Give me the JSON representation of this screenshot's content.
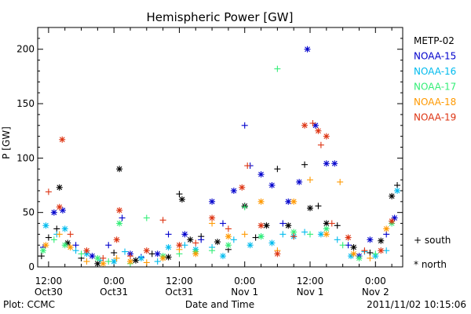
{
  "chart_data": {
    "type": "scatter",
    "title": "Hemispheric Power [GW]",
    "xlabel": "Date and Time",
    "ylabel": "P [GW]",
    "ylim": [
      0,
      220
    ],
    "xlim_hours": [
      -2,
      65
    ],
    "yticks": [
      0,
      50,
      100,
      150,
      200
    ],
    "xtick_labels": [
      {
        "h": 0,
        "top": "12:00",
        "bottom": "Oct30"
      },
      {
        "h": 12,
        "top": "0:00",
        "bottom": "Oct31"
      },
      {
        "h": 24,
        "top": "12:00",
        "bottom": "Oct31"
      },
      {
        "h": 36,
        "top": "0:00",
        "bottom": "Nov 1"
      },
      {
        "h": 48,
        "top": "12:00",
        "bottom": "Nov 1"
      },
      {
        "h": 60,
        "top": "0:00",
        "bottom": "Nov 2"
      }
    ],
    "x_reference": "hours after 2011-10-30 12:00",
    "legend_position": "right",
    "symbol_legend": [
      {
        "symbol": "+",
        "label": "south"
      },
      {
        "symbol": "*",
        "label": "north"
      }
    ],
    "series": [
      {
        "name": "METP-02",
        "color": "#000000",
        "points": [
          {
            "x": -1.3,
            "y": 10,
            "h": "south"
          },
          {
            "x": 0.0,
            "y": 27,
            "h": "south"
          },
          {
            "x": 1.5,
            "y": 35,
            "h": "south"
          },
          {
            "x": 2.0,
            "y": 73,
            "h": "north"
          },
          {
            "x": 3.5,
            "y": 22,
            "h": "north"
          },
          {
            "x": 6.0,
            "y": 8,
            "h": "south"
          },
          {
            "x": 9.0,
            "y": 3,
            "h": "north"
          },
          {
            "x": 12.0,
            "y": 13,
            "h": "south"
          },
          {
            "x": 13.0,
            "y": 90,
            "h": "north"
          },
          {
            "x": 16.0,
            "y": 6,
            "h": "north"
          },
          {
            "x": 19.0,
            "y": 12,
            "h": "south"
          },
          {
            "x": 22.0,
            "y": 9,
            "h": "north"
          },
          {
            "x": 24.0,
            "y": 67,
            "h": "south"
          },
          {
            "x": 24.5,
            "y": 62,
            "h": "north"
          },
          {
            "x": 26.0,
            "y": 25,
            "h": "north"
          },
          {
            "x": 28.0,
            "y": 28,
            "h": "south"
          },
          {
            "x": 31.0,
            "y": 23,
            "h": "north"
          },
          {
            "x": 33.0,
            "y": 16,
            "h": "south"
          },
          {
            "x": 36.0,
            "y": 56,
            "h": "north"
          },
          {
            "x": 38.0,
            "y": 27,
            "h": "south"
          },
          {
            "x": 40.0,
            "y": 38,
            "h": "north"
          },
          {
            "x": 42.0,
            "y": 90,
            "h": "south"
          },
          {
            "x": 44.0,
            "y": 38,
            "h": "north"
          },
          {
            "x": 47.0,
            "y": 94,
            "h": "south"
          },
          {
            "x": 48.0,
            "y": 54,
            "h": "north"
          },
          {
            "x": 49.5,
            "y": 56,
            "h": "south"
          },
          {
            "x": 51.0,
            "y": 40,
            "h": "north"
          },
          {
            "x": 53.0,
            "y": 38,
            "h": "south"
          },
          {
            "x": 56.0,
            "y": 18,
            "h": "north"
          },
          {
            "x": 59.0,
            "y": 13,
            "h": "south"
          },
          {
            "x": 61.0,
            "y": 24,
            "h": "north"
          },
          {
            "x": 63.0,
            "y": 65,
            "h": "north"
          },
          {
            "x": 64.0,
            "y": 75,
            "h": "south"
          }
        ]
      },
      {
        "name": "NOAA-15",
        "color": "#0000cc",
        "points": [
          {
            "x": -1.0,
            "y": 18,
            "h": "south"
          },
          {
            "x": 1.0,
            "y": 50,
            "h": "north"
          },
          {
            "x": 2.6,
            "y": 52,
            "h": "north"
          },
          {
            "x": 5.0,
            "y": 20,
            "h": "south"
          },
          {
            "x": 8.0,
            "y": 10,
            "h": "north"
          },
          {
            "x": 11.0,
            "y": 20,
            "h": "south"
          },
          {
            "x": 13.5,
            "y": 45,
            "h": "south"
          },
          {
            "x": 15.0,
            "y": 12,
            "h": "north"
          },
          {
            "x": 17.0,
            "y": 9,
            "h": "south"
          },
          {
            "x": 20.0,
            "y": 12,
            "h": "north"
          },
          {
            "x": 22.0,
            "y": 30,
            "h": "south"
          },
          {
            "x": 25.0,
            "y": 30,
            "h": "north"
          },
          {
            "x": 28.0,
            "y": 25,
            "h": "south"
          },
          {
            "x": 30.0,
            "y": 60,
            "h": "north"
          },
          {
            "x": 32.0,
            "y": 40,
            "h": "south"
          },
          {
            "x": 34.0,
            "y": 70,
            "h": "north"
          },
          {
            "x": 36.0,
            "y": 130,
            "h": "south"
          },
          {
            "x": 37.0,
            "y": 93,
            "h": "south"
          },
          {
            "x": 39.0,
            "y": 85,
            "h": "north"
          },
          {
            "x": 41.0,
            "y": 75,
            "h": "north"
          },
          {
            "x": 43.0,
            "y": 40,
            "h": "south"
          },
          {
            "x": 44.0,
            "y": 60,
            "h": "north"
          },
          {
            "x": 46.0,
            "y": 78,
            "h": "north"
          },
          {
            "x": 47.5,
            "y": 200,
            "h": "north"
          },
          {
            "x": 49.0,
            "y": 130,
            "h": "north"
          },
          {
            "x": 51.0,
            "y": 95,
            "h": "north"
          },
          {
            "x": 52.5,
            "y": 95,
            "h": "north"
          },
          {
            "x": 55.0,
            "y": 20,
            "h": "south"
          },
          {
            "x": 57.0,
            "y": 10,
            "h": "north"
          },
          {
            "x": 59.0,
            "y": 25,
            "h": "north"
          },
          {
            "x": 62.0,
            "y": 30,
            "h": "south"
          },
          {
            "x": 63.5,
            "y": 45,
            "h": "north"
          }
        ]
      },
      {
        "name": "NOAA-16",
        "color": "#00bbee",
        "points": [
          {
            "x": -0.5,
            "y": 38,
            "h": "north"
          },
          {
            "x": 1.5,
            "y": 30,
            "h": "south"
          },
          {
            "x": 3.0,
            "y": 35,
            "h": "north"
          },
          {
            "x": 5.0,
            "y": 15,
            "h": "south"
          },
          {
            "x": 7.0,
            "y": 12,
            "h": "north"
          },
          {
            "x": 9.5,
            "y": 6,
            "h": "south"
          },
          {
            "x": 12.0,
            "y": 5,
            "h": "north"
          },
          {
            "x": 14.0,
            "y": 14,
            "h": "south"
          },
          {
            "x": 17.0,
            "y": 8,
            "h": "north"
          },
          {
            "x": 20.0,
            "y": 5,
            "h": "south"
          },
          {
            "x": 22.0,
            "y": 18,
            "h": "north"
          },
          {
            "x": 25.0,
            "y": 20,
            "h": "south"
          },
          {
            "x": 27.0,
            "y": 16,
            "h": "north"
          },
          {
            "x": 30.0,
            "y": 18,
            "h": "south"
          },
          {
            "x": 32.0,
            "y": 10,
            "h": "north"
          },
          {
            "x": 34.0,
            "y": 25,
            "h": "south"
          },
          {
            "x": 37.0,
            "y": 20,
            "h": "north"
          },
          {
            "x": 39.0,
            "y": 28,
            "h": "south"
          },
          {
            "x": 41.0,
            "y": 22,
            "h": "north"
          },
          {
            "x": 43.0,
            "y": 30,
            "h": "south"
          },
          {
            "x": 45.0,
            "y": 28,
            "h": "north"
          },
          {
            "x": 47.0,
            "y": 32,
            "h": "south"
          },
          {
            "x": 50.0,
            "y": 30,
            "h": "north"
          },
          {
            "x": 53.0,
            "y": 25,
            "h": "south"
          },
          {
            "x": 55.5,
            "y": 10,
            "h": "north"
          },
          {
            "x": 58.0,
            "y": 14,
            "h": "south"
          },
          {
            "x": 60.0,
            "y": 10,
            "h": "north"
          },
          {
            "x": 62.0,
            "y": 15,
            "h": "south"
          },
          {
            "x": 64.0,
            "y": 70,
            "h": "north"
          }
        ]
      },
      {
        "name": "NOAA-17",
        "color": "#33ee77",
        "points": [
          {
            "x": -1.0,
            "y": 15,
            "h": "north"
          },
          {
            "x": 1.0,
            "y": 25,
            "h": "south"
          },
          {
            "x": 3.0,
            "y": 20,
            "h": "north"
          },
          {
            "x": 6.0,
            "y": 12,
            "h": "south"
          },
          {
            "x": 9.0,
            "y": 8,
            "h": "north"
          },
          {
            "x": 11.0,
            "y": 5,
            "h": "south"
          },
          {
            "x": 13.0,
            "y": 40,
            "h": "north"
          },
          {
            "x": 15.0,
            "y": 3,
            "h": "south"
          },
          {
            "x": 18.0,
            "y": 45,
            "h": "south"
          },
          {
            "x": 21.0,
            "y": 10,
            "h": "north"
          },
          {
            "x": 24.0,
            "y": 12,
            "h": "south"
          },
          {
            "x": 27.0,
            "y": 14,
            "h": "north"
          },
          {
            "x": 30.0,
            "y": 15,
            "h": "south"
          },
          {
            "x": 33.0,
            "y": 20,
            "h": "north"
          },
          {
            "x": 36.0,
            "y": 55,
            "h": "south"
          },
          {
            "x": 39.0,
            "y": 28,
            "h": "north"
          },
          {
            "x": 42.0,
            "y": 182,
            "h": "south"
          },
          {
            "x": 45.0,
            "y": 32,
            "h": "north"
          },
          {
            "x": 48.0,
            "y": 30,
            "h": "south"
          },
          {
            "x": 51.0,
            "y": 35,
            "h": "north"
          },
          {
            "x": 54.0,
            "y": 20,
            "h": "south"
          },
          {
            "x": 57.0,
            "y": 8,
            "h": "north"
          },
          {
            "x": 60.0,
            "y": 12,
            "h": "south"
          },
          {
            "x": 63.0,
            "y": 40,
            "h": "north"
          }
        ]
      },
      {
        "name": "NOAA-18",
        "color": "#ff9900",
        "points": [
          {
            "x": -0.5,
            "y": 20,
            "h": "north"
          },
          {
            "x": 2.0,
            "y": 30,
            "h": "south"
          },
          {
            "x": 4.0,
            "y": 18,
            "h": "north"
          },
          {
            "x": 7.0,
            "y": 5,
            "h": "south"
          },
          {
            "x": 10.0,
            "y": 3,
            "h": "north"
          },
          {
            "x": 12.5,
            "y": 8,
            "h": "south"
          },
          {
            "x": 15.0,
            "y": 5,
            "h": "north"
          },
          {
            "x": 18.0,
            "y": 4,
            "h": "south"
          },
          {
            "x": 21.0,
            "y": 8,
            "h": "north"
          },
          {
            "x": 24.0,
            "y": 16,
            "h": "south"
          },
          {
            "x": 27.0,
            "y": 12,
            "h": "north"
          },
          {
            "x": 30.0,
            "y": 40,
            "h": "south"
          },
          {
            "x": 33.0,
            "y": 28,
            "h": "north"
          },
          {
            "x": 36.0,
            "y": 30,
            "h": "south"
          },
          {
            "x": 39.0,
            "y": 60,
            "h": "north"
          },
          {
            "x": 42.0,
            "y": 15,
            "h": "south"
          },
          {
            "x": 45.0,
            "y": 60,
            "h": "north"
          },
          {
            "x": 48.0,
            "y": 80,
            "h": "south"
          },
          {
            "x": 51.0,
            "y": 30,
            "h": "north"
          },
          {
            "x": 53.5,
            "y": 78,
            "h": "south"
          },
          {
            "x": 56.0,
            "y": 12,
            "h": "north"
          },
          {
            "x": 59.0,
            "y": 8,
            "h": "south"
          },
          {
            "x": 62.0,
            "y": 35,
            "h": "north"
          }
        ]
      },
      {
        "name": "NOAA-19",
        "color": "#dd3311",
        "points": [
          {
            "x": 0.0,
            "y": 69,
            "h": "south"
          },
          {
            "x": 2.0,
            "y": 55,
            "h": "north"
          },
          {
            "x": 2.5,
            "y": 117,
            "h": "north"
          },
          {
            "x": 4.0,
            "y": 30,
            "h": "south"
          },
          {
            "x": 7.0,
            "y": 15,
            "h": "north"
          },
          {
            "x": 10.0,
            "y": 8,
            "h": "south"
          },
          {
            "x": 12.5,
            "y": 25,
            "h": "north"
          },
          {
            "x": 13.0,
            "y": 52,
            "h": "north"
          },
          {
            "x": 15.0,
            "y": 10,
            "h": "south"
          },
          {
            "x": 18.0,
            "y": 15,
            "h": "north"
          },
          {
            "x": 21.0,
            "y": 43,
            "h": "south"
          },
          {
            "x": 24.0,
            "y": 20,
            "h": "north"
          },
          {
            "x": 27.0,
            "y": 22,
            "h": "south"
          },
          {
            "x": 30.0,
            "y": 45,
            "h": "north"
          },
          {
            "x": 33.0,
            "y": 35,
            "h": "south"
          },
          {
            "x": 35.5,
            "y": 73,
            "h": "north"
          },
          {
            "x": 36.5,
            "y": 93,
            "h": "south"
          },
          {
            "x": 39.0,
            "y": 38,
            "h": "north"
          },
          {
            "x": 42.0,
            "y": 12,
            "h": "north"
          },
          {
            "x": 45.0,
            "y": 28,
            "h": "south"
          },
          {
            "x": 47.0,
            "y": 130,
            "h": "north"
          },
          {
            "x": 48.5,
            "y": 132,
            "h": "south"
          },
          {
            "x": 49.5,
            "y": 125,
            "h": "north"
          },
          {
            "x": 50.0,
            "y": 112,
            "h": "south"
          },
          {
            "x": 51.0,
            "y": 120,
            "h": "north"
          },
          {
            "x": 52.0,
            "y": 40,
            "h": "south"
          },
          {
            "x": 55.0,
            "y": 27,
            "h": "north"
          },
          {
            "x": 58.0,
            "y": 15,
            "h": "south"
          },
          {
            "x": 61.0,
            "y": 15,
            "h": "north"
          },
          {
            "x": 63.0,
            "y": 42,
            "h": "north"
          }
        ]
      }
    ]
  },
  "footer": {
    "left": "Plot: CCMC",
    "right": "2011/11/02 10:15:06"
  }
}
